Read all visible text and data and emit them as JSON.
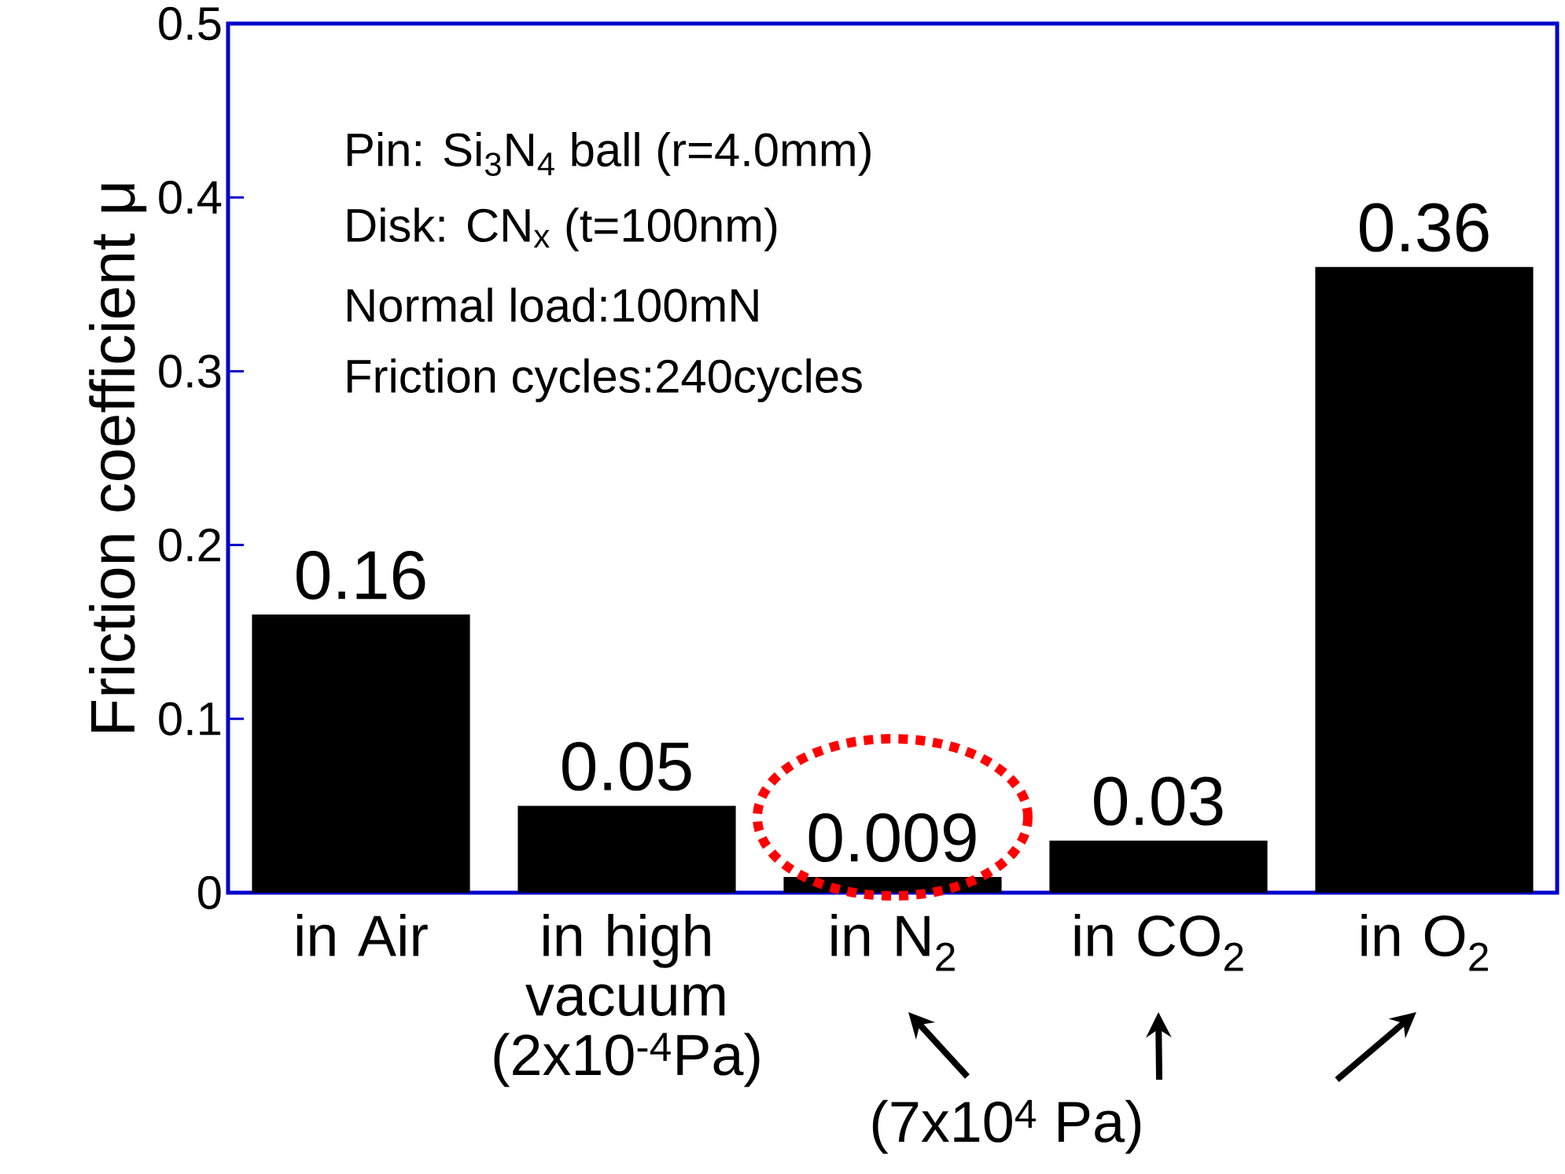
{
  "chart_data": {
    "type": "bar",
    "ylabel": "Friction coefficient μ",
    "categories": [
      "in Air",
      "in high vacuum (2x10$^{-4}$Pa)",
      "in N$_{2}$",
      "in CO$_{2}$",
      "in O$_{2}$"
    ],
    "values": [
      0.16,
      0.05,
      0.009,
      0.03,
      0.36
    ],
    "color": "#000000",
    "data_labels": true,
    "ylim": [
      0,
      0.5
    ],
    "yticks": [
      0,
      0.1,
      0.2,
      0.3,
      0.4,
      0.5
    ],
    "annotations": [
      "Pin: Si$_{3}$N$_{4}$ ball (r=4.0mm)",
      "Disk: CN$_{x}$ (t=100nm)",
      "Normal load:100mN",
      "Friction cycles:240cycles",
      "(7x10$^{4}$ Pa)"
    ]
  }
}
